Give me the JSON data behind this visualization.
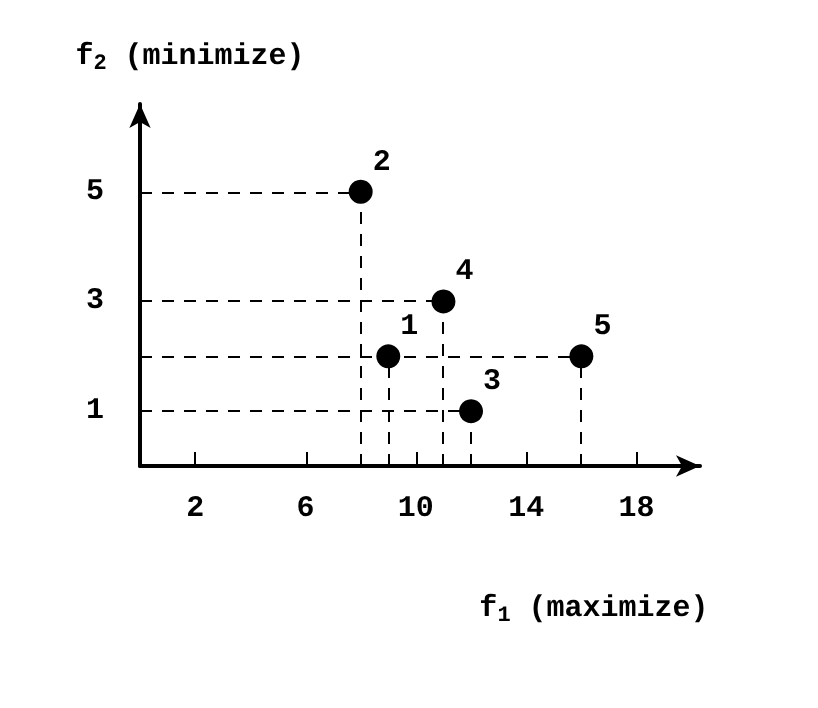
{
  "chart_data": {
    "type": "scatter",
    "xlabel": "f$_{1}$ (maximize)",
    "ylabel": "f$_{2}$ (minimize)",
    "x": [
      9,
      8,
      12,
      11,
      16
    ],
    "series": [
      {
        "color": "#000000",
        "values": [
          2,
          5,
          1,
          3,
          2
        ]
      }
    ],
    "xlim": [
      0,
      20.3
    ],
    "xticks": [
      2,
      6,
      10,
      14,
      18
    ],
    "ylim": [
      0,
      6.6
    ],
    "yticks": [
      1,
      3,
      5
    ],
    "marker": "circle",
    "annotations": [
      {
        "text": "1",
        "x": 9,
        "y": 2
      },
      {
        "text": "2",
        "x": 8,
        "y": 5
      },
      {
        "text": "3",
        "x": 12,
        "y": 1
      },
      {
        "text": "4",
        "x": 11,
        "y": 3
      },
      {
        "text": "5",
        "x": 16,
        "y": 2
      }
    ]
  }
}
